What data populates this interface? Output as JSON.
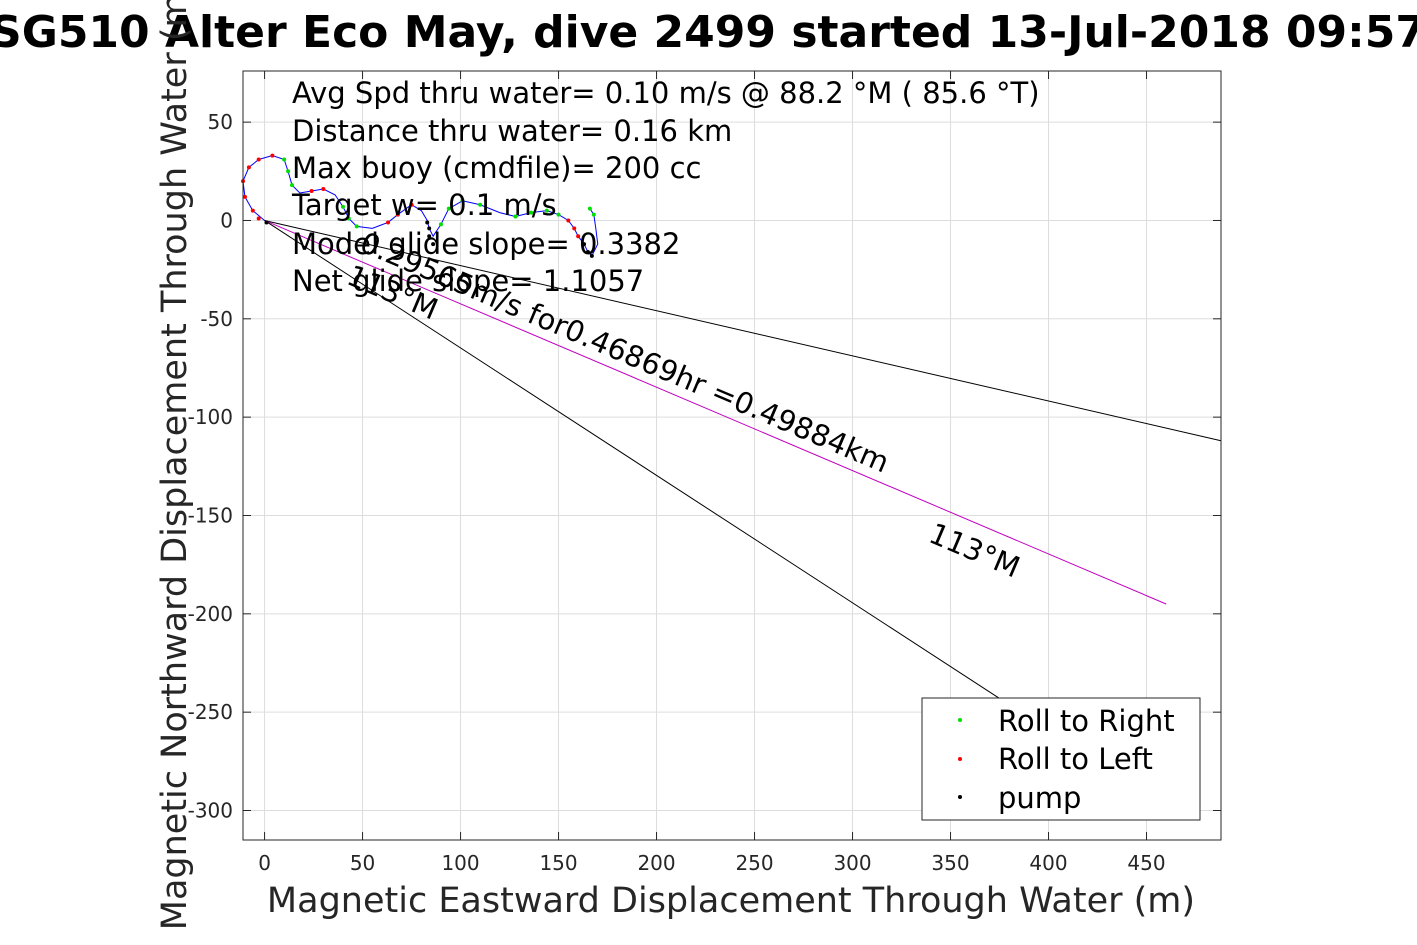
{
  "title": "SG510 Alter Eco May, dive 2499 started 13-Jul-2018 09:57",
  "annotations": [
    "Avg Spd thru water=  0.10 m/s @  88.2 °M ( 85.6 °T)",
    "Distance thru water=  0.16 km",
    "Max buoy (cmdfile)= 200 cc",
    "Target w=  0.1 m/s",
    "Model glide slope= 0.3382",
    "Net glide slope= 1.1057"
  ],
  "ray_labels": {
    "speed": "0.29565m/s for0.46869hr =0.49884km",
    "heading_far": "113°M",
    "heading_near": "113°M"
  },
  "legend": [
    "Roll to Right",
    "Roll to Left",
    "pump"
  ],
  "colors": {
    "axes_bg": "#ffffff",
    "grid": "#dddddd",
    "track": "#0000ff",
    "roll_right": "#00e000",
    "roll_left": "#ff0000",
    "pump": "#000000",
    "magenta": "#c000c0",
    "ray": "#000000"
  },
  "chart_data": {
    "type": "line",
    "xlabel": "Magnetic Eastward Displacement Through Water (m)",
    "ylabel": "Magnetic Northward Displacement Through Water (m)",
    "xlim": [
      -11,
      488
    ],
    "ylim": [
      -315,
      76
    ],
    "xticks": [
      0,
      50,
      100,
      150,
      200,
      250,
      300,
      350,
      400,
      450
    ],
    "yticks": [
      50,
      0,
      -50,
      -100,
      -150,
      -200,
      -250,
      -300
    ],
    "grid": true,
    "legend_position": "bottom-right",
    "track": [
      [
        0,
        0
      ],
      [
        -6,
        5
      ],
      [
        -10,
        12
      ],
      [
        -11,
        20
      ],
      [
        -8,
        27
      ],
      [
        -3,
        31
      ],
      [
        4,
        33
      ],
      [
        10,
        31
      ],
      [
        12,
        25
      ],
      [
        14,
        18
      ],
      [
        18,
        14
      ],
      [
        24,
        15
      ],
      [
        30,
        16
      ],
      [
        36,
        13
      ],
      [
        40,
        7
      ],
      [
        43,
        1
      ],
      [
        47,
        -3
      ],
      [
        55,
        -4
      ],
      [
        63,
        -1
      ],
      [
        68,
        3
      ],
      [
        75,
        8
      ],
      [
        80,
        5
      ],
      [
        83,
        0
      ],
      [
        84,
        -4
      ],
      [
        86,
        -8
      ],
      [
        90,
        -2
      ],
      [
        94,
        6
      ],
      [
        101,
        10
      ],
      [
        110,
        8
      ],
      [
        120,
        4
      ],
      [
        128,
        2
      ],
      [
        136,
        4
      ],
      [
        144,
        5
      ],
      [
        150,
        3
      ],
      [
        155,
        0
      ],
      [
        158,
        -4
      ],
      [
        160,
        -8
      ],
      [
        163,
        -12
      ],
      [
        165,
        -16
      ],
      [
        167,
        -18
      ],
      [
        170,
        -12
      ],
      [
        169,
        -4
      ],
      [
        168,
        3
      ],
      [
        166,
        6
      ]
    ],
    "roll_right": [
      [
        10,
        31
      ],
      [
        12,
        25
      ],
      [
        14,
        18
      ],
      [
        40,
        7
      ],
      [
        43,
        1
      ],
      [
        47,
        -3
      ],
      [
        90,
        -2
      ],
      [
        94,
        6
      ],
      [
        101,
        10
      ],
      [
        110,
        8
      ],
      [
        128,
        2
      ],
      [
        136,
        4
      ],
      [
        144,
        5
      ],
      [
        150,
        3
      ],
      [
        168,
        3
      ],
      [
        166,
        6
      ]
    ],
    "roll_left": [
      [
        -3,
        1
      ],
      [
        -6,
        5
      ],
      [
        -10,
        12
      ],
      [
        -11,
        20
      ],
      [
        -8,
        27
      ],
      [
        -3,
        31
      ],
      [
        4,
        33
      ],
      [
        24,
        15
      ],
      [
        30,
        16
      ],
      [
        63,
        -1
      ],
      [
        68,
        3
      ],
      [
        75,
        8
      ],
      [
        155,
        0
      ],
      [
        158,
        -4
      ],
      [
        160,
        -8
      ]
    ],
    "pump": [
      [
        1,
        -1
      ],
      [
        83,
        -1
      ],
      [
        84,
        -4
      ],
      [
        84,
        -8
      ],
      [
        86,
        -12
      ],
      [
        163,
        -12
      ],
      [
        165,
        -16
      ],
      [
        167,
        -18
      ]
    ],
    "rays": [
      {
        "from": [
          0,
          0
        ],
        "to": [
          488,
          -112
        ],
        "color": "ray"
      },
      {
        "from": [
          0,
          0
        ],
        "to": [
          460,
          -195
        ],
        "color": "magenta"
      },
      {
        "from": [
          0,
          0
        ],
        "to": [
          375,
          -243
        ],
        "color": "ray"
      }
    ]
  }
}
